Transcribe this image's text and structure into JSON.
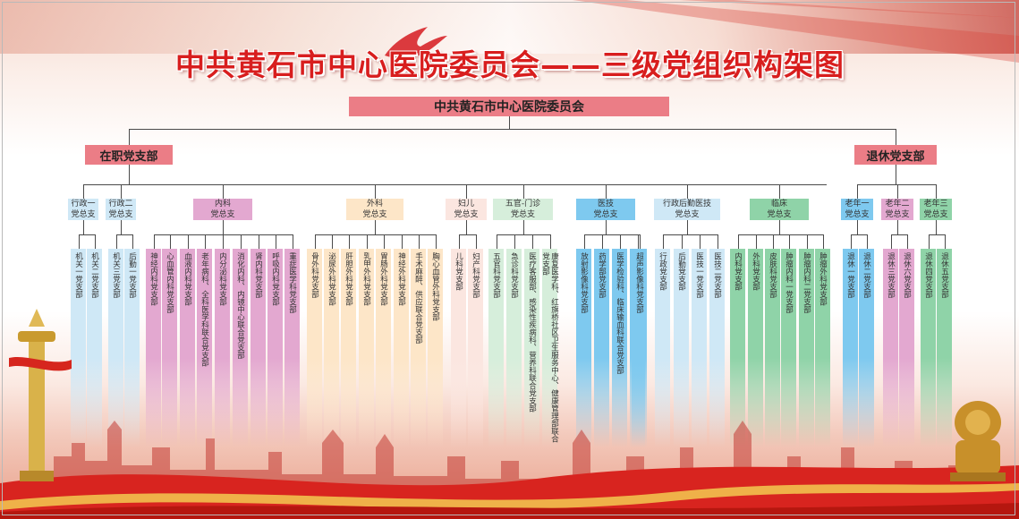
{
  "title": "中共黄石市中心医院委员会——三级党组织构架图",
  "root": {
    "label": "中共黄石市中心医院委员会",
    "color": "#eb7d86"
  },
  "level2": [
    {
      "label": "在职党支部",
      "color": "#eb7d86"
    },
    {
      "label": "退休党支部",
      "color": "#eb7d86"
    }
  ],
  "general_branches": [
    {
      "lines": [
        "行政一",
        "党总支"
      ],
      "color": "#cfe8f6",
      "leaves": [
        "机关一党支部",
        "机关二党支部"
      ]
    },
    {
      "lines": [
        "行政二",
        "党总支"
      ],
      "color": "#cfe8f6",
      "leaves": [
        "机关三党支部",
        "后勤一党支部"
      ]
    },
    {
      "lines": [
        "内科",
        "党总支"
      ],
      "color": "#e3a8d0",
      "leaves": [
        "神经内科党支部",
        "心血管内科党支部",
        "血液内科党支部",
        "老年病科、全科医学科联合党支部",
        "内分泌科党支部",
        "消化内科、内镜中心联合党支部",
        "肾内科党支部",
        "呼吸内科党支部",
        "重症医学科党支部"
      ]
    },
    {
      "lines": [
        "外科",
        "党总支"
      ],
      "color": "#fde6c8",
      "leaves": [
        "骨外科党支部",
        "泌尿外科党支部",
        "肝胆外科党支部",
        "乳甲外科党支部",
        "胃肠外科党支部",
        "神经外科党支部",
        "手术麻醉、供应联合党支部",
        "胸心血管外科党支部"
      ]
    },
    {
      "lines": [
        "妇儿",
        "党总支"
      ],
      "color": "#fbe6e0",
      "leaves": [
        "儿科党支部",
        "妇产科党支部"
      ]
    },
    {
      "lines": [
        "五官-门诊",
        "党总支"
      ],
      "color": "#d6eedb",
      "leaves": [
        "五官科党支部",
        "急诊科党支部",
        "医疗客服部、感染性疾病科、营养科联合党支部",
        "康复医学科、红旗桥社区卫生服务中心、健康管理部联合党支部"
      ]
    },
    {
      "lines": [
        "医技",
        "党总支"
      ],
      "color": "#7ec9ef",
      "leaves": [
        "放射影像科党支部",
        "药学部党支部",
        "医学检验科、临床输血科联合党支部",
        "病理科党支部",
        "超声影像科党支部"
      ]
    },
    {
      "lines": [
        "行政后勤医技",
        "党总支"
      ],
      "color": "#cfe8f6",
      "leaves": [
        "行政党支部",
        "后勤党支部",
        "医技一党支部",
        "医技二党支部"
      ]
    },
    {
      "lines": [
        "临床",
        "党总支"
      ],
      "color": "#8fd3a8",
      "leaves": [
        "内科党支部",
        "外科党支部",
        "皮肤科党支部",
        "肿瘤内科一党支部",
        "肿瘤内科二党支部",
        "肿瘤外科党支部"
      ]
    },
    {
      "lines": [
        "老年一",
        "党总支"
      ],
      "color": "#7ec9ef",
      "leaves": [
        "退休一党支部",
        "退休二党支部"
      ]
    },
    {
      "lines": [
        "老年二",
        "党总支"
      ],
      "color": "#e3a8d0",
      "leaves": [
        "退休三党支部",
        "退休六党支部"
      ]
    },
    {
      "lines": [
        "老年三",
        "党总支"
      ],
      "color": "#8fd3a8",
      "leaves": [
        "退休四党支部",
        "退休五党支部"
      ]
    }
  ]
}
